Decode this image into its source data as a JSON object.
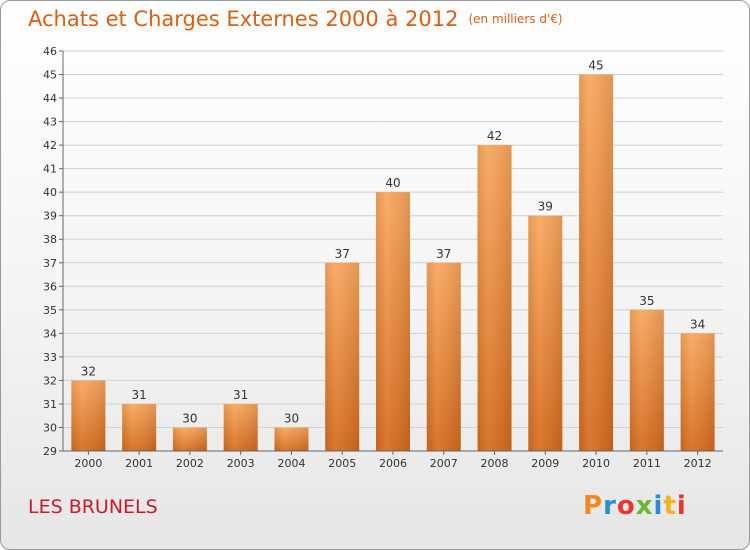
{
  "title": "Achats et Charges Externes 2000 à 2012",
  "title_unit": "(en milliers d'€)",
  "commune": "LES BRUNELS",
  "logo": {
    "text": "Proxiti",
    "letter_colors": [
      "#f08a1e",
      "#2a8dd4",
      "#e9352b",
      "#6bb82e",
      "#2a8dd4",
      "#f0b41e",
      "#e9352b"
    ]
  },
  "colors": {
    "title": "#d95f12",
    "commune": "#cc1a2a",
    "bar_top": "#f9a65c",
    "bar_bottom": "#d56b1c",
    "grid": "#d0d0d0"
  },
  "chart_data": {
    "type": "bar",
    "title": "Achats et Charges Externes 2000 à 2012",
    "xlabel": "",
    "ylabel": "en milliers d'€",
    "categories": [
      "2000",
      "2001",
      "2002",
      "2003",
      "2004",
      "2005",
      "2006",
      "2007",
      "2008",
      "2009",
      "2010",
      "2011",
      "2012"
    ],
    "values": [
      32,
      31,
      30,
      31,
      30,
      37,
      40,
      37,
      42,
      39,
      45,
      35,
      34
    ],
    "ylim": [
      29,
      46
    ],
    "yticks": [
      29,
      30,
      31,
      32,
      33,
      34,
      35,
      36,
      37,
      38,
      39,
      40,
      41,
      42,
      43,
      44,
      45,
      46
    ],
    "grid": true
  }
}
